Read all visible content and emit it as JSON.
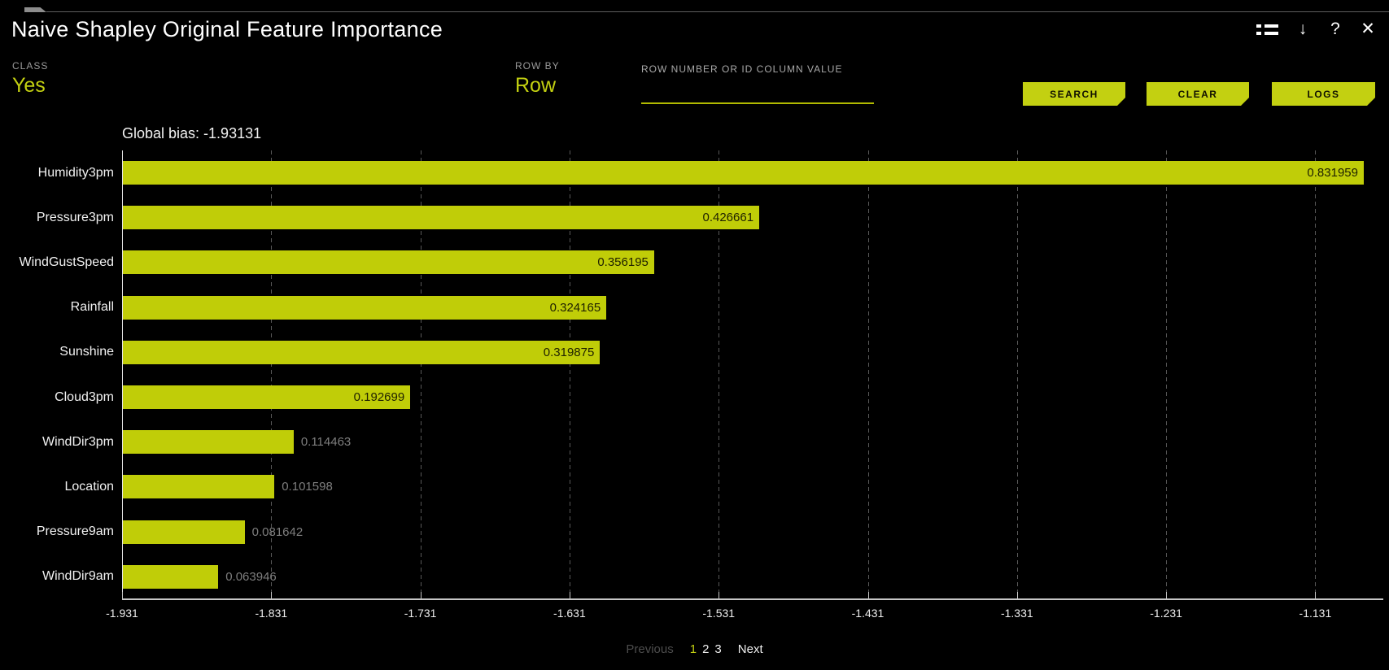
{
  "window": {
    "title": "Naive Shapley Original Feature Importance",
    "icons": {
      "download": "↓",
      "help": "?",
      "close": "✕"
    }
  },
  "controls": {
    "class": {
      "label": "CLASS",
      "value": "Yes"
    },
    "row_by": {
      "label": "ROW BY",
      "value": "Row"
    },
    "row_search": {
      "label": "ROW NUMBER OR ID COLUMN VALUE",
      "value": "",
      "placeholder": ""
    },
    "buttons": {
      "search": "SEARCH",
      "clear": "CLEAR",
      "logs": "LOGS"
    }
  },
  "chart_data": {
    "type": "bar",
    "orientation": "horizontal",
    "title": "Global bias: -1.93131",
    "global_bias": -1.93131,
    "categories": [
      "Humidity3pm",
      "Pressure3pm",
      "WindGustSpeed",
      "Rainfall",
      "Sunshine",
      "Cloud3pm",
      "WindDir3pm",
      "Location",
      "Pressure9am",
      "WindDir9am"
    ],
    "values": [
      0.831959,
      0.426661,
      0.356195,
      0.324165,
      0.319875,
      0.192699,
      0.114463,
      0.101598,
      0.081642,
      0.063946
    ],
    "value_labels": [
      "0.831959",
      "0.426661",
      "0.356195",
      "0.324165",
      "0.319875",
      "0.192699",
      "0.114463",
      "0.101598",
      "0.081642",
      "0.063946"
    ],
    "bars_start_at": -1.931,
    "x_ticks": [
      "-1.931",
      "-1.831",
      "-1.731",
      "-1.631",
      "-1.531",
      "-1.431",
      "-1.331",
      "-1.231",
      "-1.131"
    ],
    "x_tick_values": [
      -1.931,
      -1.831,
      -1.731,
      -1.631,
      -1.531,
      -1.431,
      -1.331,
      -1.231,
      -1.131
    ],
    "xlim": [
      -1.931,
      -1.0854
    ],
    "inside_label_min_value": 0.15,
    "grid": "dashed-vertical-gridlines",
    "legend": "none"
  },
  "pagination": {
    "previous": "Previous",
    "pages": [
      "1",
      "2",
      "3"
    ],
    "active_page": "1",
    "next": "Next"
  },
  "colors": {
    "background": "#000000",
    "accent": "#c3d011",
    "bar": "#c0cd08",
    "value_inside_text": "#202200",
    "value_outside_text": "#7e7e7e",
    "muted_label": "#9a9a9a",
    "gridline": "#585858",
    "axis": "#c6c6c6",
    "disabled_text": "#4d4d4d"
  }
}
